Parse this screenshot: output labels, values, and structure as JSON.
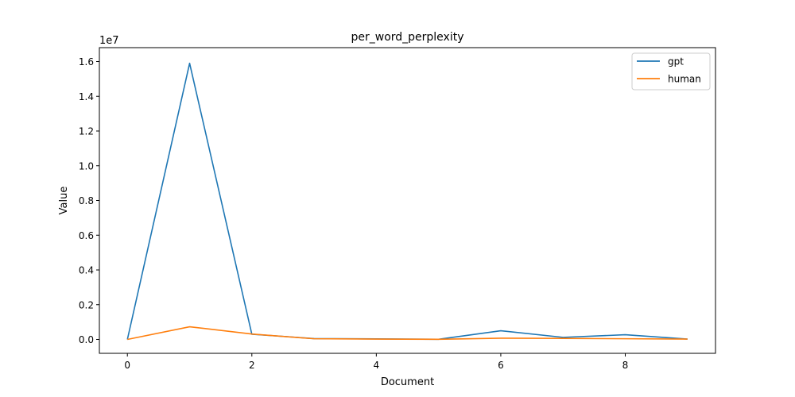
{
  "chart_data": {
    "type": "line",
    "title": "per_word_perplexity",
    "xlabel": "Document",
    "ylabel": "Value",
    "y_offset_label": "1e7",
    "x": [
      0,
      1,
      2,
      3,
      4,
      5,
      6,
      7,
      8,
      9
    ],
    "xlim": [
      -0.45,
      9.45
    ],
    "ylim": [
      -0.08,
      1.68
    ],
    "x_ticks": [
      0,
      2,
      4,
      6,
      8
    ],
    "x_tick_labels": [
      "0",
      "2",
      "4",
      "6",
      "8"
    ],
    "y_ticks": [
      0,
      0.2,
      0.4,
      0.6,
      0.8,
      1.0,
      1.2,
      1.4,
      1.6
    ],
    "y_tick_labels": [
      "0.0",
      "0.2",
      "0.4",
      "0.6",
      "0.8",
      "1.0",
      "1.2",
      "1.4",
      "1.6"
    ],
    "grid": false,
    "legend_position": "top-right",
    "series": [
      {
        "name": "gpt",
        "color": "#1f77b4",
        "values": [
          0.0,
          1.59,
          0.03,
          0.005,
          0.003,
          0.001,
          0.05,
          0.012,
          0.027,
          0.002
        ]
      },
      {
        "name": "human",
        "color": "#ff7f0e",
        "values": [
          0.0,
          0.073,
          0.031,
          0.004,
          0.002,
          0.001,
          0.007,
          0.006,
          0.004,
          0.002
        ]
      }
    ]
  }
}
